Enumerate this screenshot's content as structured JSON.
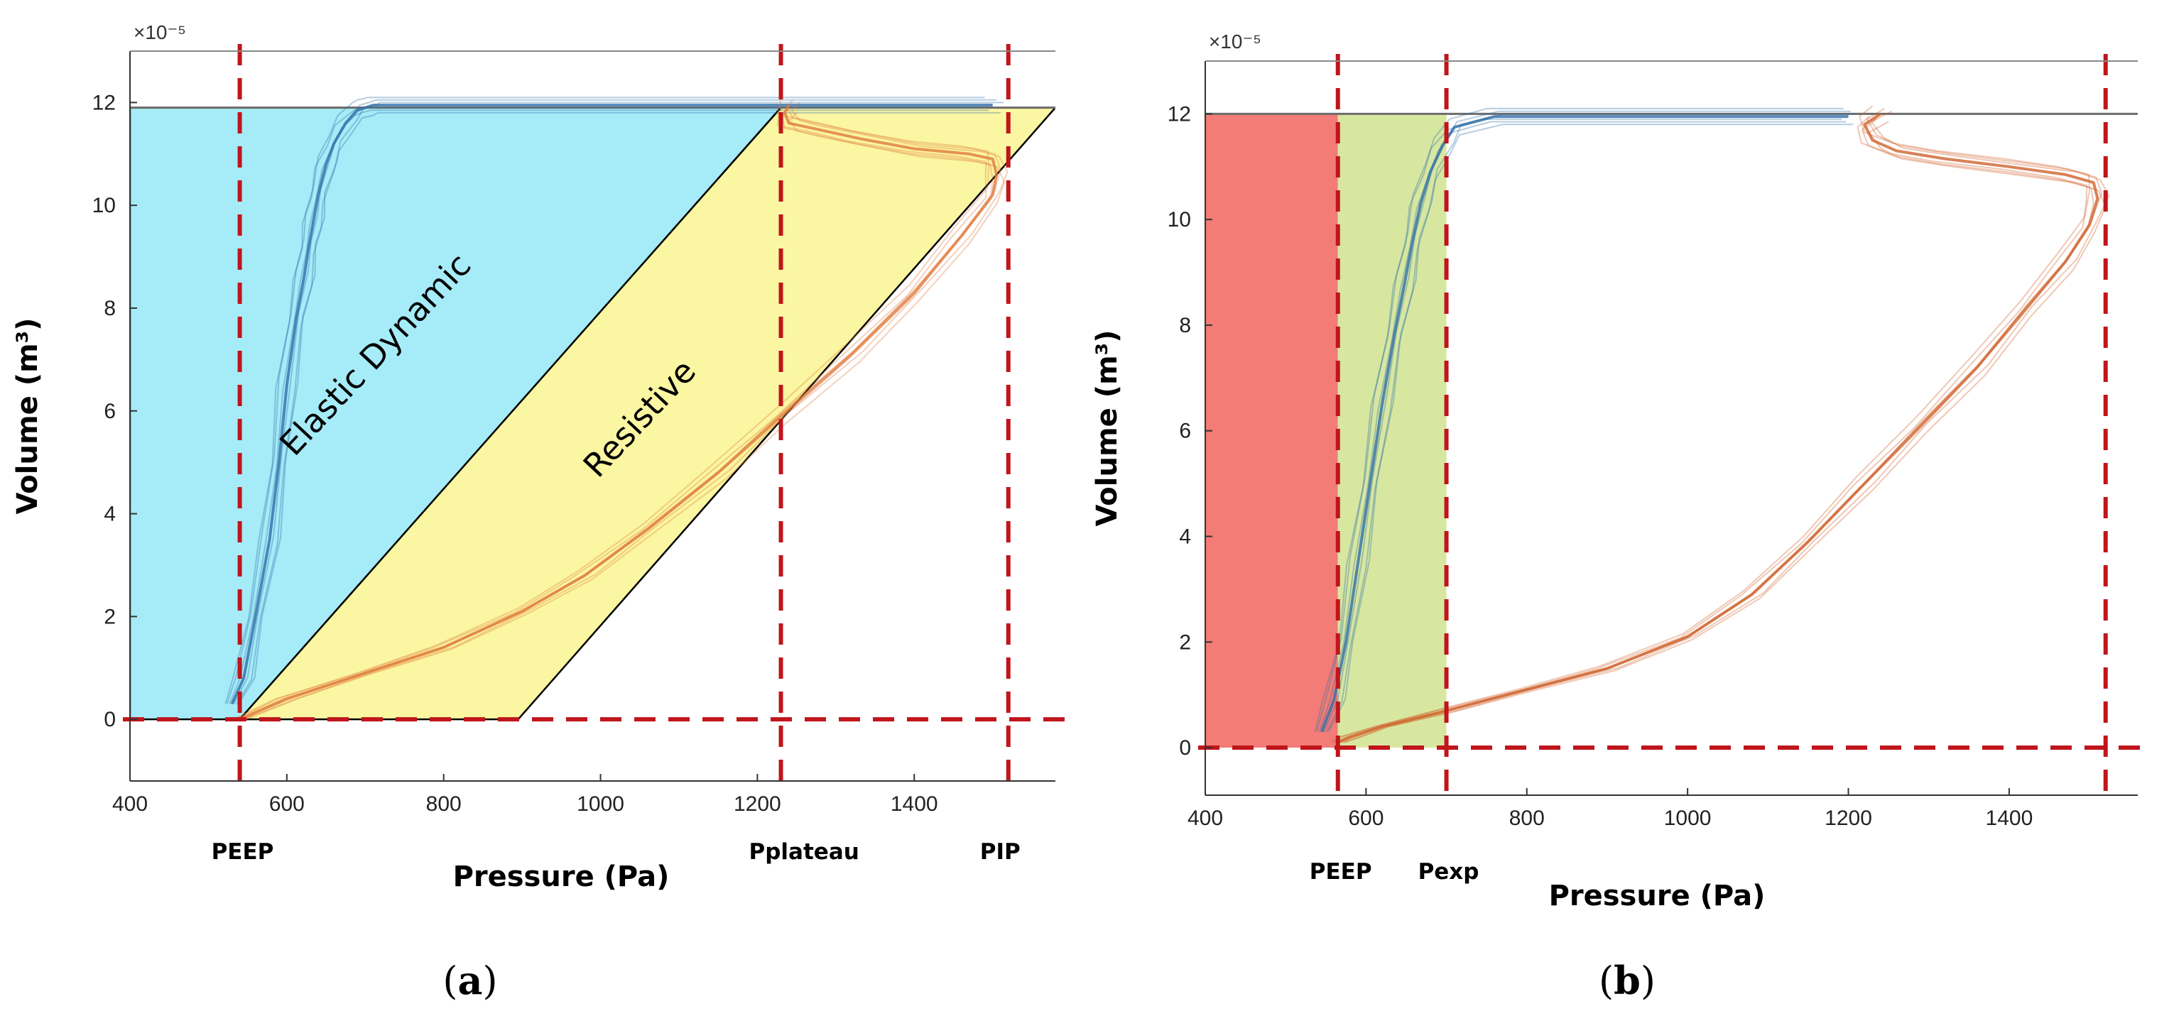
{
  "chart_data": [
    {
      "type": "line",
      "caption_letter": "a",
      "xlabel": "Pressure (Pa)",
      "ylabel": "Volume (m³)",
      "y_multiplier": "×10⁻⁵",
      "xlim": [
        400,
        1580
      ],
      "ylim": [
        -1.2,
        13
      ],
      "xticks": [
        400,
        600,
        800,
        1000,
        1200,
        1400
      ],
      "yticks": [
        0,
        2,
        4,
        6,
        8,
        10,
        12
      ],
      "grid": false,
      "markers": [
        {
          "label": "PEEP",
          "value": 540
        },
        {
          "label": "Pplateau",
          "value": 1230
        },
        {
          "label": "PIP",
          "value": 1520
        }
      ],
      "regions": [
        {
          "label": "Elastic Dynamic",
          "color": "#a6ecf8",
          "vertices": [
            [
              400,
              11.9
            ],
            [
              400,
              0
            ],
            [
              540,
              0
            ],
            [
              1230,
              11.9
            ]
          ]
        },
        {
          "label": "Resistive",
          "color": "#fbf6a2",
          "vertices": [
            [
              540,
              0
            ],
            [
              895,
              0
            ],
            [
              1580,
              11.9
            ],
            [
              1230,
              11.9
            ]
          ]
        }
      ],
      "series": [
        {
          "color": "#2f6fa8",
          "x": [
            530,
            545,
            560,
            578,
            590,
            600,
            612,
            622,
            628,
            634,
            640,
            650,
            660,
            675,
            690,
            700,
            710,
            735,
            790,
            900,
            1000,
            1200,
            1400,
            1500
          ],
          "y": [
            0.3,
            0.8,
            2,
            3.5,
            5,
            6.5,
            7.8,
            8.6,
            9.2,
            9.7,
            10.2,
            10.8,
            11.2,
            11.6,
            11.85,
            11.9,
            11.95,
            11.95,
            11.95,
            11.95,
            11.95,
            11.95,
            11.95,
            11.95
          ]
        },
        {
          "color": "#e07a3c",
          "x": [
            540,
            600,
            700,
            800,
            900,
            980,
            1060,
            1150,
            1230,
            1320,
            1400,
            1460,
            1500,
            1505,
            1500,
            1470,
            1400,
            1330,
            1270,
            1240,
            1235,
            1240
          ],
          "y": [
            0,
            0.4,
            0.9,
            1.4,
            2.1,
            2.8,
            3.7,
            4.8,
            5.9,
            7.1,
            8.3,
            9.4,
            10.2,
            10.6,
            10.9,
            11.0,
            11.1,
            11.3,
            11.5,
            11.6,
            11.8,
            11.95
          ]
        }
      ]
    },
    {
      "type": "line",
      "caption_letter": "b",
      "xlabel": "Pressure (Pa)",
      "ylabel": "Volume (m³)",
      "y_multiplier": "×10⁻⁵",
      "xlim": [
        400,
        1560
      ],
      "ylim": [
        -0.9,
        13
      ],
      "xticks": [
        400,
        600,
        800,
        1000,
        1200,
        1400
      ],
      "yticks": [
        0,
        2,
        4,
        6,
        8,
        10,
        12
      ],
      "grid": false,
      "markers": [
        {
          "label": "PEEP",
          "value": 565
        },
        {
          "label": "Pexp",
          "value": 700
        },
        {
          "label": "",
          "value": 1520
        }
      ],
      "regions": [
        {
          "label": "",
          "color": "#f37c76",
          "vertices": [
            [
              400,
              12
            ],
            [
              400,
              0
            ],
            [
              565,
              0
            ],
            [
              565,
              12
            ]
          ]
        },
        {
          "label": "",
          "color": "#d8e7a0",
          "vertices": [
            [
              565,
              12
            ],
            [
              565,
              0
            ],
            [
              700,
              0
            ],
            [
              700,
              12
            ]
          ]
        }
      ],
      "series": [
        {
          "color": "#2f6fa8",
          "x": [
            545,
            560,
            575,
            590,
            605,
            620,
            635,
            648,
            658,
            668,
            680,
            695,
            710,
            760,
            900,
            1100,
            1200
          ],
          "y": [
            0.3,
            0.9,
            2,
            3.5,
            5,
            6.5,
            7.8,
            8.8,
            9.6,
            10.3,
            10.9,
            11.4,
            11.75,
            11.95,
            11.95,
            11.95,
            11.95
          ]
        },
        {
          "color": "#d0622c",
          "x": [
            565,
            580,
            620,
            700,
            800,
            900,
            1000,
            1080,
            1150,
            1220,
            1290,
            1360,
            1420,
            1470,
            1500,
            1510,
            1505,
            1470,
            1400,
            1320,
            1260,
            1230,
            1220,
            1240
          ],
          "y": [
            0.1,
            0.2,
            0.4,
            0.7,
            1.1,
            1.5,
            2.1,
            2.9,
            3.9,
            5.0,
            6.1,
            7.2,
            8.3,
            9.2,
            9.9,
            10.4,
            10.7,
            10.85,
            11.0,
            11.15,
            11.3,
            11.5,
            11.8,
            12.0
          ]
        }
      ]
    }
  ]
}
